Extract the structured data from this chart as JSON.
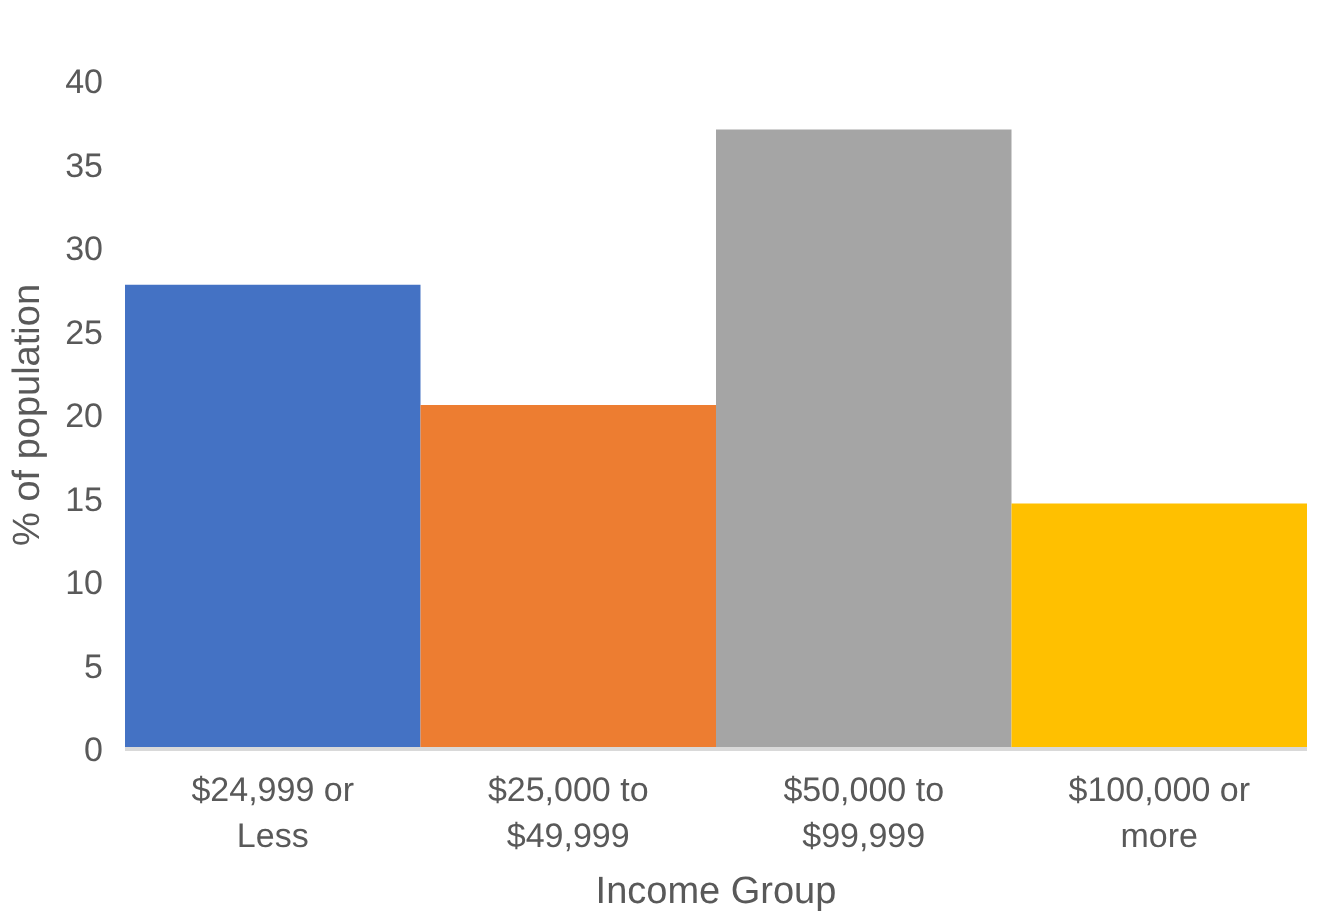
{
  "chart_data": {
    "type": "bar",
    "xlabel": "Income Group",
    "ylabel": "% of population",
    "categories": [
      "$24,999 or\nLess",
      "$25,000 to\n$49,999",
      "$50,000 to\n$99,999",
      "$100,000 or\nmore"
    ],
    "values": [
      27.8,
      20.6,
      37.1,
      14.7
    ],
    "colors": [
      "#4472c4",
      "#ed7d31",
      "#a5a5a5",
      "#ffc000"
    ],
    "ylim": [
      0,
      40
    ],
    "yticks": [
      0,
      5,
      10,
      15,
      20,
      25,
      30,
      35,
      40
    ],
    "grid": false
  }
}
